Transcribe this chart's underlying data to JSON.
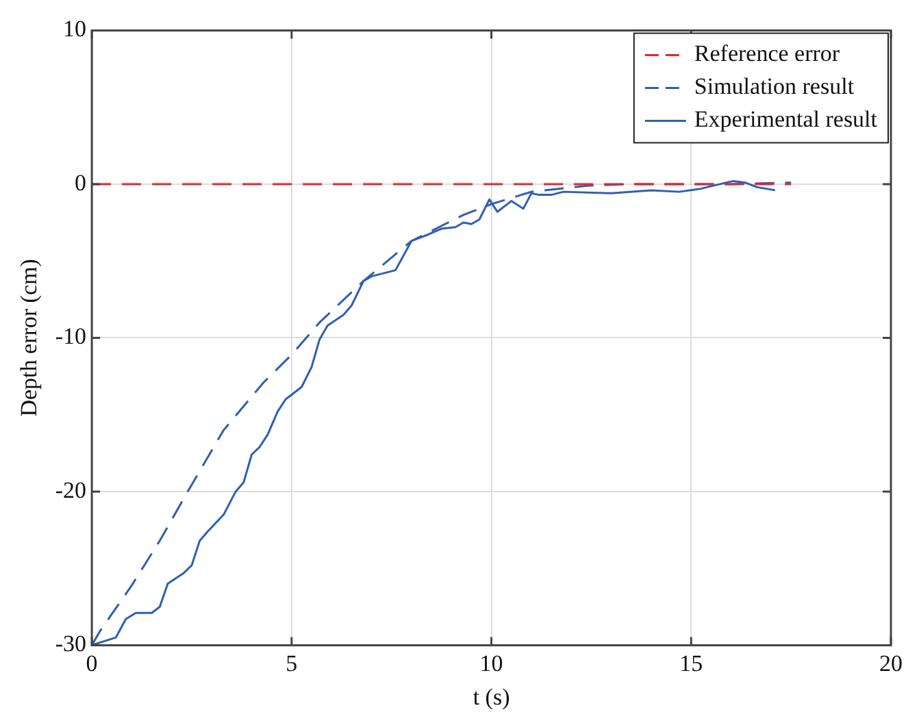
{
  "chart_data": {
    "type": "line",
    "xlabel": "t (s)",
    "ylabel": "Depth error (cm)",
    "xlim": [
      0,
      20
    ],
    "xticks": [
      0,
      5,
      10,
      15,
      20
    ],
    "ylim": [
      -30,
      10
    ],
    "yticks": [
      -30,
      -20,
      -10,
      0,
      10
    ],
    "grid": true,
    "legend": "top right",
    "marker": "none",
    "series": [
      {
        "name": "Reference error",
        "color": "#e8262a",
        "line_style": "dashed",
        "x": [
          0,
          17.5
        ],
        "values": [
          0,
          0
        ]
      },
      {
        "name": "Simulation result",
        "color": "#2f5fb3",
        "line_style": "dashed",
        "x": [
          0,
          0.2,
          1.0,
          1.7,
          2.4,
          3.3,
          4.3,
          5.0,
          5.7,
          6.8,
          8.0,
          9.3,
          10.0,
          11.0,
          12.4,
          13.5,
          15,
          16,
          17.5
        ],
        "values": [
          -30,
          -29.1,
          -26.1,
          -23.2,
          -20.0,
          -16.0,
          -12.9,
          -11.1,
          -9.0,
          -6.3,
          -3.7,
          -2.0,
          -1.3,
          -0.5,
          -0.1,
          0,
          0,
          0,
          0.1
        ]
      },
      {
        "name": "Experimental result",
        "color": "#2f5fb3",
        "line_style": "solid",
        "x": [
          0,
          0.6,
          0.85,
          1.1,
          1.5,
          1.7,
          1.9,
          2.3,
          2.5,
          2.7,
          2.9,
          3.3,
          3.6,
          3.8,
          4.0,
          4.2,
          4.4,
          4.65,
          4.85,
          5.25,
          5.5,
          5.7,
          5.9,
          6.3,
          6.5,
          6.8,
          7.0,
          7.6,
          8.0,
          8.4,
          8.75,
          9.1,
          9.3,
          9.5,
          9.7,
          9.95,
          10.15,
          10.5,
          10.8,
          11.0,
          11.2,
          11.5,
          11.8,
          13.0,
          14.0,
          14.7,
          15.25,
          15.4,
          16.05,
          16.35,
          16.65,
          17.1
        ],
        "values": [
          -30,
          -29.5,
          -28.3,
          -27.9,
          -27.9,
          -27.5,
          -26.0,
          -25.3,
          -24.8,
          -23.2,
          -22.6,
          -21.5,
          -20.0,
          -19.4,
          -17.6,
          -17.1,
          -16.3,
          -14.8,
          -14.0,
          -13.2,
          -11.9,
          -10.1,
          -9.2,
          -8.5,
          -7.9,
          -6.3,
          -6.0,
          -5.6,
          -3.7,
          -3.3,
          -2.9,
          -2.8,
          -2.5,
          -2.6,
          -2.3,
          -1.0,
          -1.8,
          -1.1,
          -1.6,
          -0.6,
          -0.7,
          -0.7,
          -0.5,
          -0.6,
          -0.4,
          -0.5,
          -0.3,
          -0.2,
          0.2,
          0.1,
          -0.2,
          -0.4
        ]
      }
    ]
  }
}
